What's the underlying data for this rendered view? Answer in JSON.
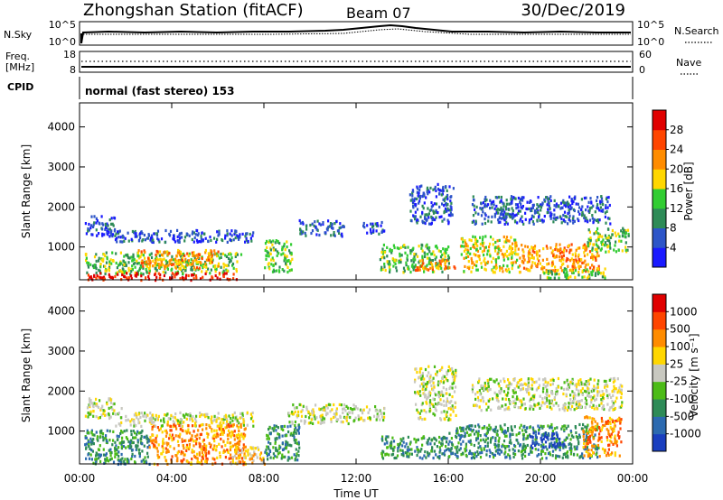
{
  "header": {
    "station": "Zhongshan Station (fitACF)",
    "beam": "Beam 07",
    "date": "30/Dec/2019"
  },
  "sky_panel": {
    "left_label": "N.Sky",
    "right_label": "N.Search",
    "tick_top_left": "10^5",
    "tick_bottom_left": "10^0",
    "tick_top_right": "10^5",
    "tick_bottom_right": "10^0"
  },
  "freq_panel": {
    "left_label_line1": "Freq.",
    "left_label_line2": "[MHz]",
    "right_label": "Nave",
    "ticks_left": [
      "18",
      "8"
    ],
    "ticks_right": [
      "60",
      "0"
    ]
  },
  "cpid": {
    "label": "CPID",
    "text": "normal (fast stereo) 153"
  },
  "chart_data": [
    {
      "type": "heatmap",
      "name": "power",
      "ylabel": "Slant Range [km]",
      "ylim": [
        180,
        4600
      ],
      "yticks": [
        "1000",
        "2000",
        "3000",
        "4000"
      ],
      "xlim_hours": [
        0,
        24
      ],
      "colorbar": {
        "label": "Power [dB]",
        "ticks": [
          "4",
          "8",
          "12",
          "16",
          "20",
          "24",
          "28"
        ],
        "colors": [
          "#1a1aff",
          "#2d55c8",
          "#2e8b57",
          "#32cd32",
          "#ffd700",
          "#ff8c00",
          "#ff4500",
          "#e00000"
        ]
      },
      "regions": [
        {
          "t": [
            0.2,
            1.5
          ],
          "r": [
            1300,
            1800
          ],
          "level": 1
        },
        {
          "t": [
            1.5,
            7.5
          ],
          "r": [
            1150,
            1450
          ],
          "level": 1
        },
        {
          "t": [
            0.2,
            7.0
          ],
          "r": [
            350,
            900
          ],
          "level": 3
        },
        {
          "t": [
            0.3,
            7.0
          ],
          "r": [
            200,
            380
          ],
          "level": 7
        },
        {
          "t": [
            2.5,
            6.0
          ],
          "r": [
            500,
            950
          ],
          "level": 5
        },
        {
          "t": [
            8.0,
            9.2
          ],
          "r": [
            400,
            1200
          ],
          "level": 3
        },
        {
          "t": [
            9.5,
            11.5
          ],
          "r": [
            1300,
            1700
          ],
          "level": 1
        },
        {
          "t": [
            12.2,
            13.2
          ],
          "r": [
            1350,
            1650
          ],
          "level": 1
        },
        {
          "t": [
            13.0,
            16.0
          ],
          "r": [
            400,
            1100
          ],
          "level": 3
        },
        {
          "t": [
            14.5,
            16.3
          ],
          "r": [
            450,
            700
          ],
          "level": 5
        },
        {
          "t": [
            14.3,
            16.2
          ],
          "r": [
            1600,
            2600
          ],
          "level": 1
        },
        {
          "t": [
            16.5,
            19.0
          ],
          "r": [
            400,
            1300
          ],
          "level": 4
        },
        {
          "t": [
            19.0,
            22.5
          ],
          "r": [
            400,
            1100
          ],
          "level": 5
        },
        {
          "t": [
            17.0,
            23.0
          ],
          "r": [
            1600,
            2300
          ],
          "level": 1
        },
        {
          "t": [
            22.0,
            23.8
          ],
          "r": [
            900,
            1500
          ],
          "level": 3
        },
        {
          "t": [
            20.0,
            23.0
          ],
          "r": [
            250,
            500
          ],
          "level": 3
        }
      ]
    },
    {
      "type": "heatmap",
      "name": "velocity",
      "ylabel": "Slant Range [km]",
      "ylim": [
        180,
        4600
      ],
      "yticks": [
        "1000",
        "2000",
        "3000",
        "4000"
      ],
      "xlabel": "Time UT",
      "xticks": [
        "00:00",
        "04:00",
        "08:00",
        "12:00",
        "16:00",
        "20:00",
        "00:00"
      ],
      "xlim_hours": [
        0,
        24
      ],
      "colorbar": {
        "label": "Velocity [m s⁻¹]",
        "ticks": [
          "1000",
          "500",
          "100",
          "25",
          "-25",
          "-100",
          "-500",
          "-1000"
        ],
        "colors": [
          "#1a3fbf",
          "#2c6ab0",
          "#2e8b57",
          "#4cbb17",
          "#c8c8c0",
          "#ffd700",
          "#ff8c00",
          "#ff4500",
          "#e00000"
        ]
      },
      "regions": [
        {
          "t": [
            0.2,
            1.8
          ],
          "r": [
            1350,
            1850
          ],
          "level": 4
        },
        {
          "t": [
            1.5,
            7.5
          ],
          "r": [
            1150,
            1500
          ],
          "level": 4
        },
        {
          "t": [
            0.2,
            3.0
          ],
          "r": [
            200,
            1050
          ],
          "level": 2
        },
        {
          "t": [
            3.0,
            7.2
          ],
          "r": [
            200,
            1200
          ],
          "level": 6
        },
        {
          "t": [
            6.5,
            8.0
          ],
          "r": [
            200,
            650
          ],
          "level": 5
        },
        {
          "t": [
            8.0,
            9.5
          ],
          "r": [
            300,
            1200
          ],
          "level": 2
        },
        {
          "t": [
            9.0,
            12.0
          ],
          "r": [
            1200,
            1700
          ],
          "level": 4
        },
        {
          "t": [
            12.0,
            13.2
          ],
          "r": [
            1300,
            1650
          ],
          "level": 4
        },
        {
          "t": [
            13.0,
            16.0
          ],
          "r": [
            350,
            900
          ],
          "level": 2
        },
        {
          "t": [
            14.5,
            16.3
          ],
          "r": [
            1300,
            2650
          ],
          "level": 4
        },
        {
          "t": [
            16.0,
            22.5
          ],
          "r": [
            350,
            1200
          ],
          "level": 2
        },
        {
          "t": [
            17.0,
            23.5
          ],
          "r": [
            1550,
            2350
          ],
          "level": 4
        },
        {
          "t": [
            19.5,
            21.0
          ],
          "r": [
            600,
            1000
          ],
          "level": 0
        },
        {
          "t": [
            21.8,
            23.5
          ],
          "r": [
            400,
            1400
          ],
          "level": 6
        }
      ]
    }
  ]
}
